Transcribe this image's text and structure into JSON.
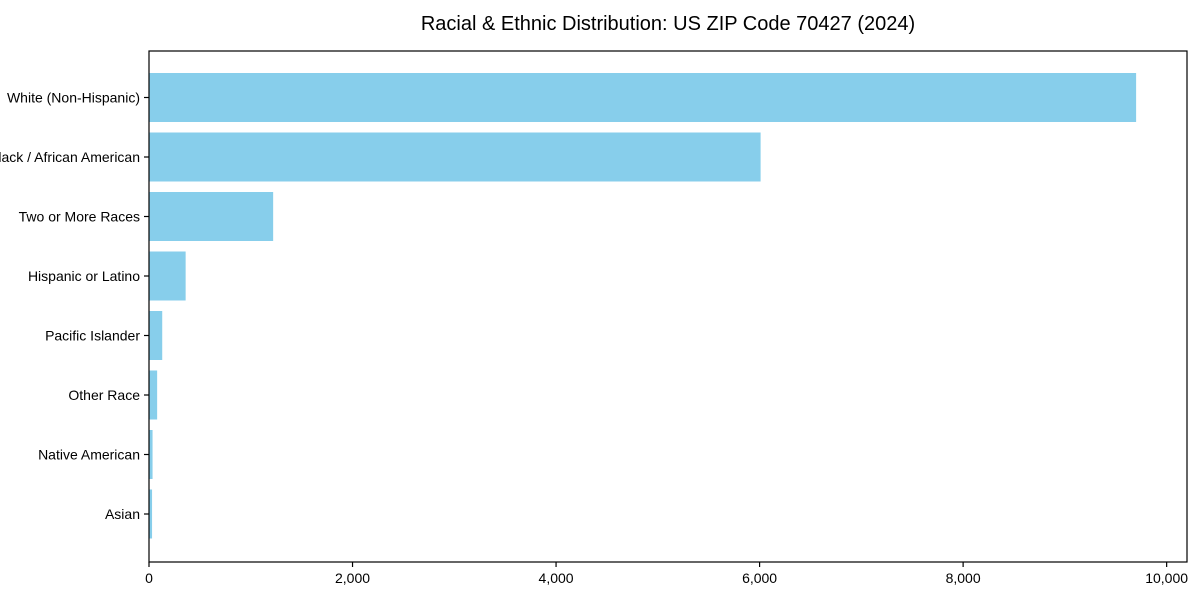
{
  "chart_data": {
    "type": "bar",
    "orientation": "horizontal",
    "title": "Racial & Ethnic Distribution: US ZIP Code 70427 (2024)",
    "categories": [
      "White (Non-Hispanic)",
      "Black / African American",
      "Two or More Races",
      "Hispanic or Latino",
      "Pacific Islander",
      "Other Race",
      "Native American",
      "Asian"
    ],
    "values": [
      9700,
      6010,
      1220,
      360,
      130,
      80,
      35,
      30
    ],
    "xlabel": "",
    "ylabel": "",
    "xlim": [
      0,
      10200
    ],
    "xticks": [
      0,
      2000,
      4000,
      6000,
      8000,
      10000
    ],
    "xtick_labels": [
      "0",
      "2,000",
      "4,000",
      "6,000",
      "8,000",
      "10,000"
    ],
    "grid": false,
    "legend_position": "none",
    "bar_color": "#87CEEB",
    "axis_color": "#000000",
    "text_color": "#000000",
    "background_color": "#FFFFFF"
  }
}
